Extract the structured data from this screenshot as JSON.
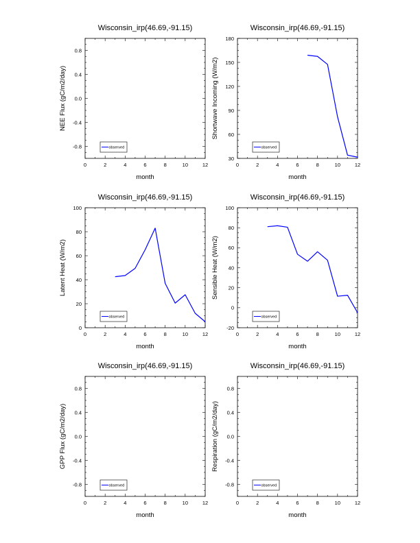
{
  "colors": {
    "series": "#0000ff",
    "axes": "#000000"
  },
  "chart_data": [
    {
      "type": "line",
      "title": "Wisconsin_irp(46.69,-91.15)",
      "xlabel": "month",
      "ylabel": "NEE Flux (gC/m2/day)",
      "xlim": [
        0,
        12
      ],
      "ylim": [
        -1,
        1
      ],
      "xticks": [
        0,
        2,
        4,
        6,
        8,
        10,
        12
      ],
      "xtick_labels": [
        "0",
        "2",
        "4",
        "6",
        "8",
        "10",
        "12"
      ],
      "yticks": [
        -0.8,
        -0.4,
        0.0,
        0.4,
        0.8
      ],
      "ytick_labels": [
        "-0.8",
        "-0.4",
        "0.0",
        "0.4",
        "0.8"
      ],
      "legend_placement": "bottom-left",
      "series": [
        {
          "name": "observed",
          "x": [],
          "y": []
        }
      ]
    },
    {
      "type": "line",
      "title": "Wisconsin_irp(46.69,-91.15)",
      "xlabel": "month",
      "ylabel": "Shortwave Incoming (W/m2)",
      "xlim": [
        0,
        12
      ],
      "ylim": [
        30,
        180
      ],
      "xticks": [
        0,
        2,
        4,
        6,
        8,
        10,
        12
      ],
      "xtick_labels": [
        "0",
        "2",
        "4",
        "6",
        "8",
        "10",
        "12"
      ],
      "yticks": [
        30,
        60,
        90,
        120,
        150,
        180
      ],
      "ytick_labels": [
        "30",
        "60",
        "90",
        "120",
        "150",
        "180"
      ],
      "legend_placement": "bottom-left",
      "series": [
        {
          "name": "observed",
          "x": [
            7,
            8,
            9,
            10,
            11,
            12
          ],
          "y": [
            159,
            157.5,
            147.5,
            82,
            34,
            31.5
          ]
        }
      ]
    },
    {
      "type": "line",
      "title": "Wisconsin_irp(46.69,-91.15)",
      "xlabel": "month",
      "ylabel": "Latent Heat (W/m2)",
      "xlim": [
        0,
        12
      ],
      "ylim": [
        0,
        100
      ],
      "xticks": [
        0,
        2,
        4,
        6,
        8,
        10,
        12
      ],
      "xtick_labels": [
        "0",
        "2",
        "4",
        "6",
        "8",
        "10",
        "12"
      ],
      "yticks": [
        0,
        20,
        40,
        60,
        80,
        100
      ],
      "ytick_labels": [
        "0",
        "20",
        "40",
        "60",
        "80",
        "100"
      ],
      "legend_placement": "bottom-left",
      "series": [
        {
          "name": "observed",
          "x": [
            3,
            4,
            5,
            6,
            7,
            8,
            9,
            10,
            11,
            12
          ],
          "y": [
            42.5,
            43.5,
            49.5,
            65,
            83,
            37,
            20.5,
            27.5,
            12,
            5
          ]
        }
      ]
    },
    {
      "type": "line",
      "title": "Wisconsin_irp(46.69,-91.15)",
      "xlabel": "month",
      "ylabel": "Sensible Heat (W/m2)",
      "xlim": [
        0,
        12
      ],
      "ylim": [
        -20,
        100
      ],
      "xticks": [
        0,
        2,
        4,
        6,
        8,
        10,
        12
      ],
      "xtick_labels": [
        "0",
        "2",
        "4",
        "6",
        "8",
        "10",
        "12"
      ],
      "yticks": [
        -20,
        0,
        20,
        40,
        60,
        80,
        100
      ],
      "ytick_labels": [
        "-20",
        "0",
        "20",
        "40",
        "60",
        "80",
        "100"
      ],
      "legend_placement": "bottom-left",
      "series": [
        {
          "name": "observed",
          "x": [
            3,
            4,
            5,
            6,
            7,
            8,
            9,
            10,
            11,
            12
          ],
          "y": [
            81,
            82,
            80.5,
            53.5,
            46.5,
            56,
            47.5,
            11.5,
            12.5,
            -5
          ]
        }
      ]
    },
    {
      "type": "line",
      "title": "Wisconsin_irp(46.69,-91.15)",
      "xlabel": "month",
      "ylabel": "GPP Flux (gC/m2/day)",
      "xlim": [
        0,
        12
      ],
      "ylim": [
        -1,
        1
      ],
      "xticks": [
        0,
        2,
        4,
        6,
        8,
        10,
        12
      ],
      "xtick_labels": [
        "0",
        "2",
        "4",
        "6",
        "8",
        "10",
        "12"
      ],
      "yticks": [
        -0.8,
        -0.4,
        0.0,
        0.4,
        0.8
      ],
      "ytick_labels": [
        "-0.8",
        "-0.4",
        "0.0",
        "0.4",
        "0.8"
      ],
      "legend_placement": "bottom-left",
      "series": [
        {
          "name": "observed",
          "x": [],
          "y": []
        }
      ]
    },
    {
      "type": "line",
      "title": "Wisconsin_irp(46.69,-91.15)",
      "xlabel": "month",
      "ylabel": "Respiration (gC/m2/day)",
      "xlim": [
        0,
        12
      ],
      "ylim": [
        -1,
        1
      ],
      "xticks": [
        0,
        2,
        4,
        6,
        8,
        10,
        12
      ],
      "xtick_labels": [
        "0",
        "2",
        "4",
        "6",
        "8",
        "10",
        "12"
      ],
      "yticks": [
        -0.8,
        -0.4,
        0.0,
        0.4,
        0.8
      ],
      "ytick_labels": [
        "-0.8",
        "-0.4",
        "0.0",
        "0.4",
        "0.8"
      ],
      "legend_placement": "bottom-left",
      "series": [
        {
          "name": "observed",
          "x": [],
          "y": []
        }
      ]
    }
  ]
}
